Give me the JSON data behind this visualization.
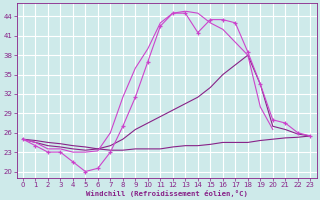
{
  "xlabel": "Windchill (Refroidissement éolien,°C)",
  "hours": [
    0,
    1,
    2,
    3,
    4,
    5,
    6,
    7,
    8,
    9,
    10,
    11,
    12,
    13,
    14,
    15,
    16,
    17,
    18,
    19,
    20,
    21,
    22,
    23
  ],
  "line_bright_markers": [
    25.0,
    24.0,
    23.0,
    23.0,
    21.5,
    20.0,
    20.5,
    23.0,
    27.0,
    31.5,
    37.0,
    42.5,
    44.5,
    44.5,
    41.5,
    43.5,
    43.5,
    43.0,
    38.5,
    33.5,
    28.0,
    27.5,
    26.0,
    25.5
  ],
  "line_bright_plain": [
    25.0,
    24.5,
    23.5,
    23.5,
    23.0,
    23.0,
    23.2,
    26.0,
    31.5,
    36.0,
    39.0,
    43.0,
    44.5,
    44.8,
    44.5,
    43.0,
    42.0,
    40.0,
    38.0,
    30.0,
    26.5,
    null,
    null,
    null
  ],
  "line_dark_diag": [
    25.0,
    24.5,
    24.0,
    23.8,
    23.5,
    23.3,
    23.5,
    24.0,
    25.0,
    26.5,
    27.5,
    28.5,
    29.5,
    30.5,
    31.5,
    33.0,
    35.0,
    36.5,
    38.0,
    33.5,
    27.0,
    26.5,
    25.8,
    25.5
  ],
  "line_dark_flat": [
    25.0,
    24.8,
    24.5,
    24.3,
    24.0,
    23.8,
    23.5,
    23.3,
    23.3,
    23.5,
    23.5,
    23.5,
    23.8,
    24.0,
    24.0,
    24.2,
    24.5,
    24.5,
    24.5,
    24.8,
    25.0,
    25.2,
    25.3,
    25.5
  ],
  "color_bright": "#cc44cc",
  "color_dark": "#882288",
  "bg_color": "#ceeaea",
  "grid_color": "#b8d8d8",
  "text_color": "#882288",
  "ylim": [
    19,
    46
  ],
  "yticks": [
    20,
    23,
    26,
    29,
    32,
    35,
    38,
    41,
    44
  ],
  "xticks": [
    0,
    1,
    2,
    3,
    4,
    5,
    6,
    7,
    8,
    9,
    10,
    11,
    12,
    13,
    14,
    15,
    16,
    17,
    18,
    19,
    20,
    21,
    22,
    23
  ]
}
